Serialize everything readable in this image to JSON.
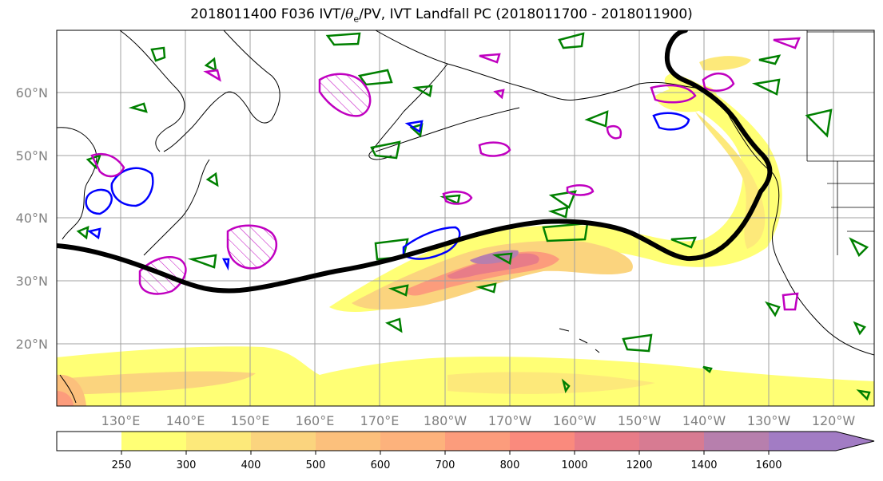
{
  "title": {
    "prefix": "2018011400 F036 IVT/",
    "theta": "θ",
    "theta_sub": "e",
    "suffix": "/PV, IVT Landfall PC (2018011700 - 2018011900)"
  },
  "axes": {
    "lat_labels": [
      "60°N",
      "50°N",
      "40°N",
      "30°N",
      "20°N"
    ],
    "lon_labels": [
      "130°E",
      "140°E",
      "150°E",
      "160°E",
      "170°E",
      "180°W",
      "170°W",
      "160°W",
      "150°W",
      "140°W",
      "130°W",
      "120°W"
    ]
  },
  "colorbar": {
    "levels": [
      "250",
      "300",
      "400",
      "500",
      "600",
      "700",
      "800",
      "1000",
      "1200",
      "1400",
      "1600"
    ],
    "colors": [
      "#ffff75",
      "#fde97a",
      "#fbd47e",
      "#fcc07c",
      "#fdb27c",
      "#fc9c7c",
      "#fa8a7d",
      "#e87c88",
      "#d77b92",
      "#b77fad",
      "#a27cc4"
    ]
  },
  "contour_colors": {
    "trajectory": "#000000",
    "theta_e": "#008000",
    "pv_blue": "#0000ff",
    "pv_magenta": "#c000c0"
  }
}
